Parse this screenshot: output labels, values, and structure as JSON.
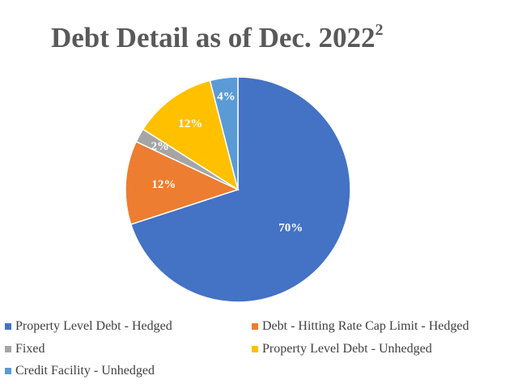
{
  "title": {
    "text": "Debt Detail as of Dec. 2022",
    "superscript": "2"
  },
  "chart_data": {
    "type": "pie",
    "title": "Debt Detail as of Dec. 2022²",
    "start_angle_deg": 0,
    "direction": "clockwise",
    "legend_position": "bottom",
    "slices": [
      {
        "label": "Property Level Debt - Hedged",
        "value": 70,
        "display": "70%",
        "color": "#4472C4"
      },
      {
        "label": "Debt - Hitting Rate Cap Limit - Hedged",
        "value": 12,
        "display": "12%",
        "color": "#ED7D31"
      },
      {
        "label": "Fixed",
        "value": 2,
        "display": "2%",
        "color": "#A5A5A5"
      },
      {
        "label": "Property Level Debt - Unhedged",
        "value": 12,
        "display": "12%",
        "color": "#FFC000"
      },
      {
        "label": "Credit Facility - Unhedged",
        "value": 4,
        "display": "4%",
        "color": "#5B9BD5"
      }
    ]
  }
}
